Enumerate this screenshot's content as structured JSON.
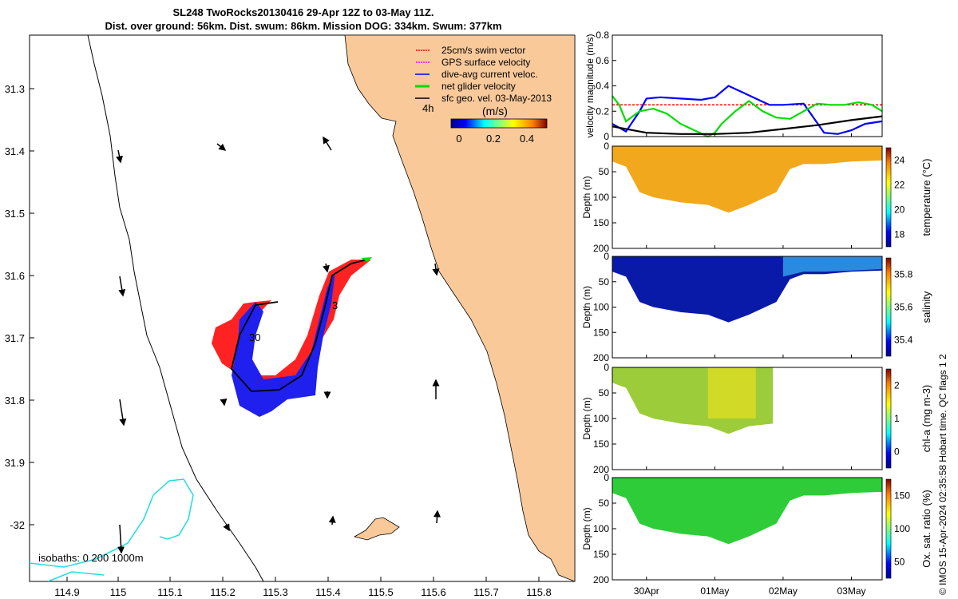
{
  "title_line1": "SL248 TwoRocks20130416 29-Apr 12Z to 03-May 11Z.",
  "title_line2": "Dist. over ground: 56km. Dist. swum: 86km. Mission DOG: 334km. Swum: 377km",
  "map": {
    "x_ticks": [
      "114.9",
      "115",
      "115.1",
      "115.2",
      "115.3",
      "115.4",
      "115.5",
      "115.6",
      "115.7",
      "115.8"
    ],
    "y_ticks": [
      "31.3",
      "31.4",
      "31.5",
      "31.6",
      "31.7",
      "31.8",
      "31.9",
      "-32"
    ],
    "legend": [
      {
        "label": "25cm/s swim vector",
        "color": "#ff0000"
      },
      {
        "label": "GPS surface velocity",
        "color": "#ff00ff"
      },
      {
        "label": "dive-avg current veloc.",
        "color": "#0000ff"
      },
      {
        "label": "net glider velocity",
        "color": "#00dd00"
      },
      {
        "label": "sfc geo. vel. 03-May-2013",
        "color": "#000000"
      }
    ],
    "colorbar_title": "(m/s)",
    "colorbar_ticks": [
      "0",
      "0.2",
      "0.4"
    ],
    "time_label": "4h",
    "isobaths_label": "isobaths: 0   200  1000m",
    "annotations": [
      "30",
      "3"
    ],
    "land_color": "#f9c99a"
  },
  "chart_data": [
    {
      "type": "line",
      "panel": "velocity",
      "ylabel": "velocity magnitude (m/s)",
      "ylim": [
        0,
        0.8
      ],
      "y_ticks": [
        "0",
        "0.2",
        "0.4",
        "0.6",
        "0.8"
      ],
      "x_ticks": [
        "30Apr",
        "01May",
        "02May",
        "03May"
      ],
      "series": [
        {
          "color": "#ff0000",
          "x": [
            29.5,
            30.0,
            30.5,
            31.0,
            31.5,
            32.0,
            32.5,
            33.0,
            33.45
          ],
          "y": [
            0.25,
            0.25,
            0.25,
            0.25,
            0.25,
            0.25,
            0.25,
            0.25,
            0.25
          ]
        },
        {
          "color": "#0000ff",
          "x": [
            29.5,
            29.7,
            29.9,
            30.0,
            30.2,
            30.5,
            30.8,
            31.0,
            31.2,
            31.4,
            31.6,
            31.8,
            32.0,
            32.3,
            32.6,
            32.8,
            33.0,
            33.2,
            33.45
          ],
          "y": [
            0.1,
            0.04,
            0.2,
            0.3,
            0.31,
            0.3,
            0.29,
            0.31,
            0.4,
            0.35,
            0.3,
            0.25,
            0.25,
            0.26,
            0.03,
            0.02,
            0.05,
            0.1,
            0.12
          ]
        },
        {
          "color": "#00dd00",
          "x": [
            29.5,
            29.6,
            29.7,
            29.9,
            30.1,
            30.3,
            30.5,
            30.7,
            30.9,
            31.0,
            31.1,
            31.3,
            31.5,
            31.7,
            31.9,
            32.1,
            32.3,
            32.5,
            32.7,
            32.9,
            33.1,
            33.3,
            33.45
          ],
          "y": [
            0.32,
            0.25,
            0.12,
            0.2,
            0.22,
            0.18,
            0.1,
            0.05,
            0.0,
            0.03,
            0.1,
            0.2,
            0.28,
            0.2,
            0.15,
            0.14,
            0.2,
            0.26,
            0.25,
            0.25,
            0.27,
            0.25,
            0.2
          ]
        },
        {
          "color": "#000000",
          "x": [
            29.5,
            29.8,
            30.0,
            30.5,
            31.0,
            31.5,
            32.0,
            32.5,
            33.0,
            33.45
          ],
          "y": [
            0.08,
            0.05,
            0.03,
            0.02,
            0.02,
            0.03,
            0.06,
            0.09,
            0.13,
            0.16
          ]
        }
      ]
    },
    {
      "type": "heatmap",
      "panel": "temperature",
      "ylabel": "Depth (m)",
      "clabel": "temperature (°C)",
      "ylim": [
        200,
        0
      ],
      "y_ticks": [
        "0",
        "50",
        "100",
        "150",
        "200"
      ],
      "c_ticks": [
        "18",
        "20",
        "22",
        "24"
      ],
      "x": [
        29.5,
        29.7,
        29.9,
        30.1,
        30.5,
        30.9,
        31.2,
        31.5,
        31.9,
        32.1,
        32.3,
        32.6,
        33.0,
        33.45
      ],
      "max_depth": [
        30,
        40,
        90,
        100,
        110,
        115,
        130,
        115,
        90,
        45,
        35,
        35,
        30,
        28
      ],
      "dominant_value": 23.5
    },
    {
      "type": "heatmap",
      "panel": "salinity",
      "ylabel": "Depth (m)",
      "clabel": "salinity",
      "ylim": [
        200,
        0
      ],
      "y_ticks": [
        "0",
        "50",
        "100",
        "150",
        "200"
      ],
      "c_ticks": [
        "35.4",
        "35.6",
        "35.8"
      ],
      "x": [
        29.5,
        29.7,
        29.9,
        30.1,
        30.5,
        30.9,
        31.2,
        31.5,
        31.9,
        32.1,
        32.3,
        32.6,
        33.0,
        33.45
      ],
      "max_depth": [
        30,
        40,
        90,
        100,
        110,
        115,
        130,
        115,
        90,
        45,
        35,
        35,
        30,
        28
      ],
      "dominant_value": 35.4
    },
    {
      "type": "heatmap",
      "panel": "chl-a",
      "ylabel": "Depth (m)",
      "clabel": "chl-a (mg m-3)",
      "ylim": [
        200,
        0
      ],
      "y_ticks": [
        "0",
        "50",
        "100",
        "150",
        "200"
      ],
      "c_ticks": [
        "0",
        "1",
        "2"
      ],
      "x": [
        29.5,
        29.7,
        29.9,
        30.1,
        30.5,
        30.9,
        31.2,
        31.5,
        31.85
      ],
      "max_depth": [
        30,
        40,
        90,
        100,
        110,
        115,
        130,
        115,
        110
      ],
      "dominant_value": 1.0
    },
    {
      "type": "heatmap",
      "panel": "oxygen",
      "ylabel": "Depth (m)",
      "clabel": "Ox. sat. ratio (%)",
      "ylim": [
        200,
        0
      ],
      "y_ticks": [
        "0",
        "50",
        "100",
        "150",
        "200"
      ],
      "c_ticks": [
        "50",
        "100",
        "150"
      ],
      "x_ticks": [
        "30Apr",
        "01May",
        "02May",
        "03May"
      ],
      "x": [
        29.5,
        29.7,
        29.9,
        30.1,
        30.5,
        30.9,
        31.2,
        31.5,
        31.9,
        32.1,
        32.3,
        32.6,
        33.0,
        33.45
      ],
      "max_depth": [
        30,
        40,
        90,
        100,
        110,
        115,
        130,
        115,
        90,
        45,
        35,
        35,
        30,
        28
      ],
      "dominant_value": 120
    }
  ],
  "footer": "© IMOS 15-Apr-2024 02:35:58 Hobart time. QC flags 1  2"
}
